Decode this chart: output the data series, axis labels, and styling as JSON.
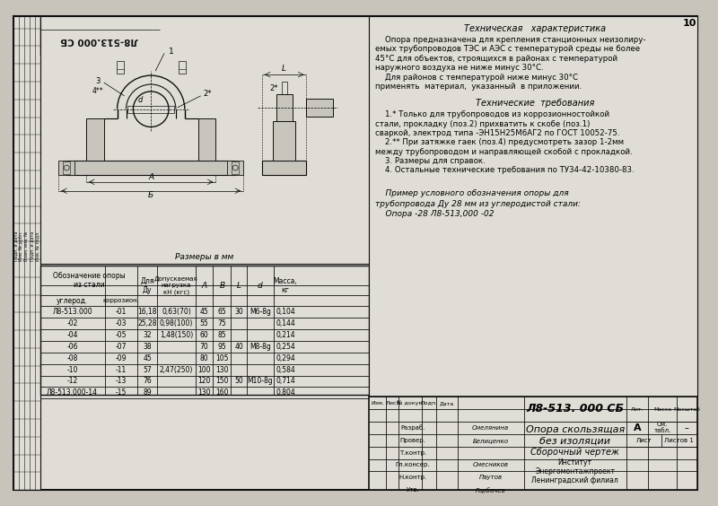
{
  "page_number": "10",
  "doc_number_rotated": "Л8-513.000 СБ",
  "razmer_label": "Размеры в мм",
  "tech_char_title": "Техническая   характеристика",
  "tech_char_lines": [
    "    Опора предназначена для крепления станционных неизолиру-",
    "емых трубопроводов ТЭС и АЭС с температурой среды не более",
    "45°С для объектов, строящихся в районах с температурой",
    "наружного воздуха не ниже минус 30°С.",
    "    Для районов с температурой ниже минус 30°С",
    "применять  материал,  указанный  в приложении."
  ],
  "tech_req_title": "Технические  требования",
  "tech_req_lines": [
    "    1.* Только для трубопроводов из коррозионностойкой",
    "стали, прокладку (поз.2) прихватить к скобе (поз.1)",
    "сваркой, электрод типа -ЭН15Н25М6АГ2 по ГОСТ 10052-75.",
    "    2.** При затяжке гаек (поз.4) предусмотреть зазор 1-2мм",
    "между трубопроводом и направляющей скобой с прокладкой.",
    "    3. Размеры для справок.",
    "    4. Остальные технические требования по ТУ34-42-10380-83."
  ],
  "example_lines": [
    "    Пример условного обозначения опоры для",
    "трубопровода Ду 28 мм из углеродистой стали:",
    "    Опора -28 Л8-513,000 -02"
  ],
  "table_data": [
    [
      "Л8-513.000",
      "-01",
      "16,18",
      "0,63(70)",
      "45",
      "65",
      "30",
      "М6-8g",
      "0,104"
    ],
    [
      "-02",
      "-03",
      "25,28",
      "0,98(100)",
      "55",
      "75",
      "",
      "",
      "0,144"
    ],
    [
      "-04",
      "-05",
      "32",
      "1,48(150)",
      "60",
      "85",
      "",
      "",
      "0,214"
    ],
    [
      "-06",
      "-07",
      "38",
      "",
      "70",
      "95",
      "40",
      "М8-8g",
      "0,254"
    ],
    [
      "-08",
      "-09",
      "45",
      "",
      "80",
      "105",
      "",
      "",
      "0,294"
    ],
    [
      "-10",
      "-11",
      "57",
      "2,47(250)",
      "100",
      "130",
      "",
      "",
      "0,584"
    ],
    [
      "-12",
      "-13",
      "76",
      "",
      "120",
      "150",
      "50",
      "М10-8g",
      "0,714"
    ],
    [
      "Л8-513.000-14",
      "-15",
      "89",
      "",
      "130",
      "160",
      "",
      "",
      "0,804"
    ]
  ],
  "stamp_title": "Л8-513. 000 СБ",
  "stamp_name1": "Опора скользящая",
  "stamp_name2": "без изоляции",
  "stamp_name3": "Сборочный чертеж",
  "liter": "А",
  "mass": "См.\nтабл.",
  "scale": "–",
  "sheet": "Лист",
  "sheets": "Листов 1",
  "persons": [
    [
      "Разраб.",
      "Смелянина"
    ],
    [
      "Провер.",
      "Белиценко"
    ],
    [
      "Т.контр.",
      ""
    ],
    [
      "Гл.консер.",
      "Смесников"
    ],
    [
      "Н.контр.",
      "Паутов"
    ],
    [
      "Утв.",
      "Горбачев"
    ]
  ],
  "org1": "Институт",
  "org2": "Энергомонтажпроект",
  "org3": "Ленинградский филиал",
  "bg_color": "#c8c4bc",
  "paper_color": "#e0ddd6",
  "line_color": "#111111"
}
